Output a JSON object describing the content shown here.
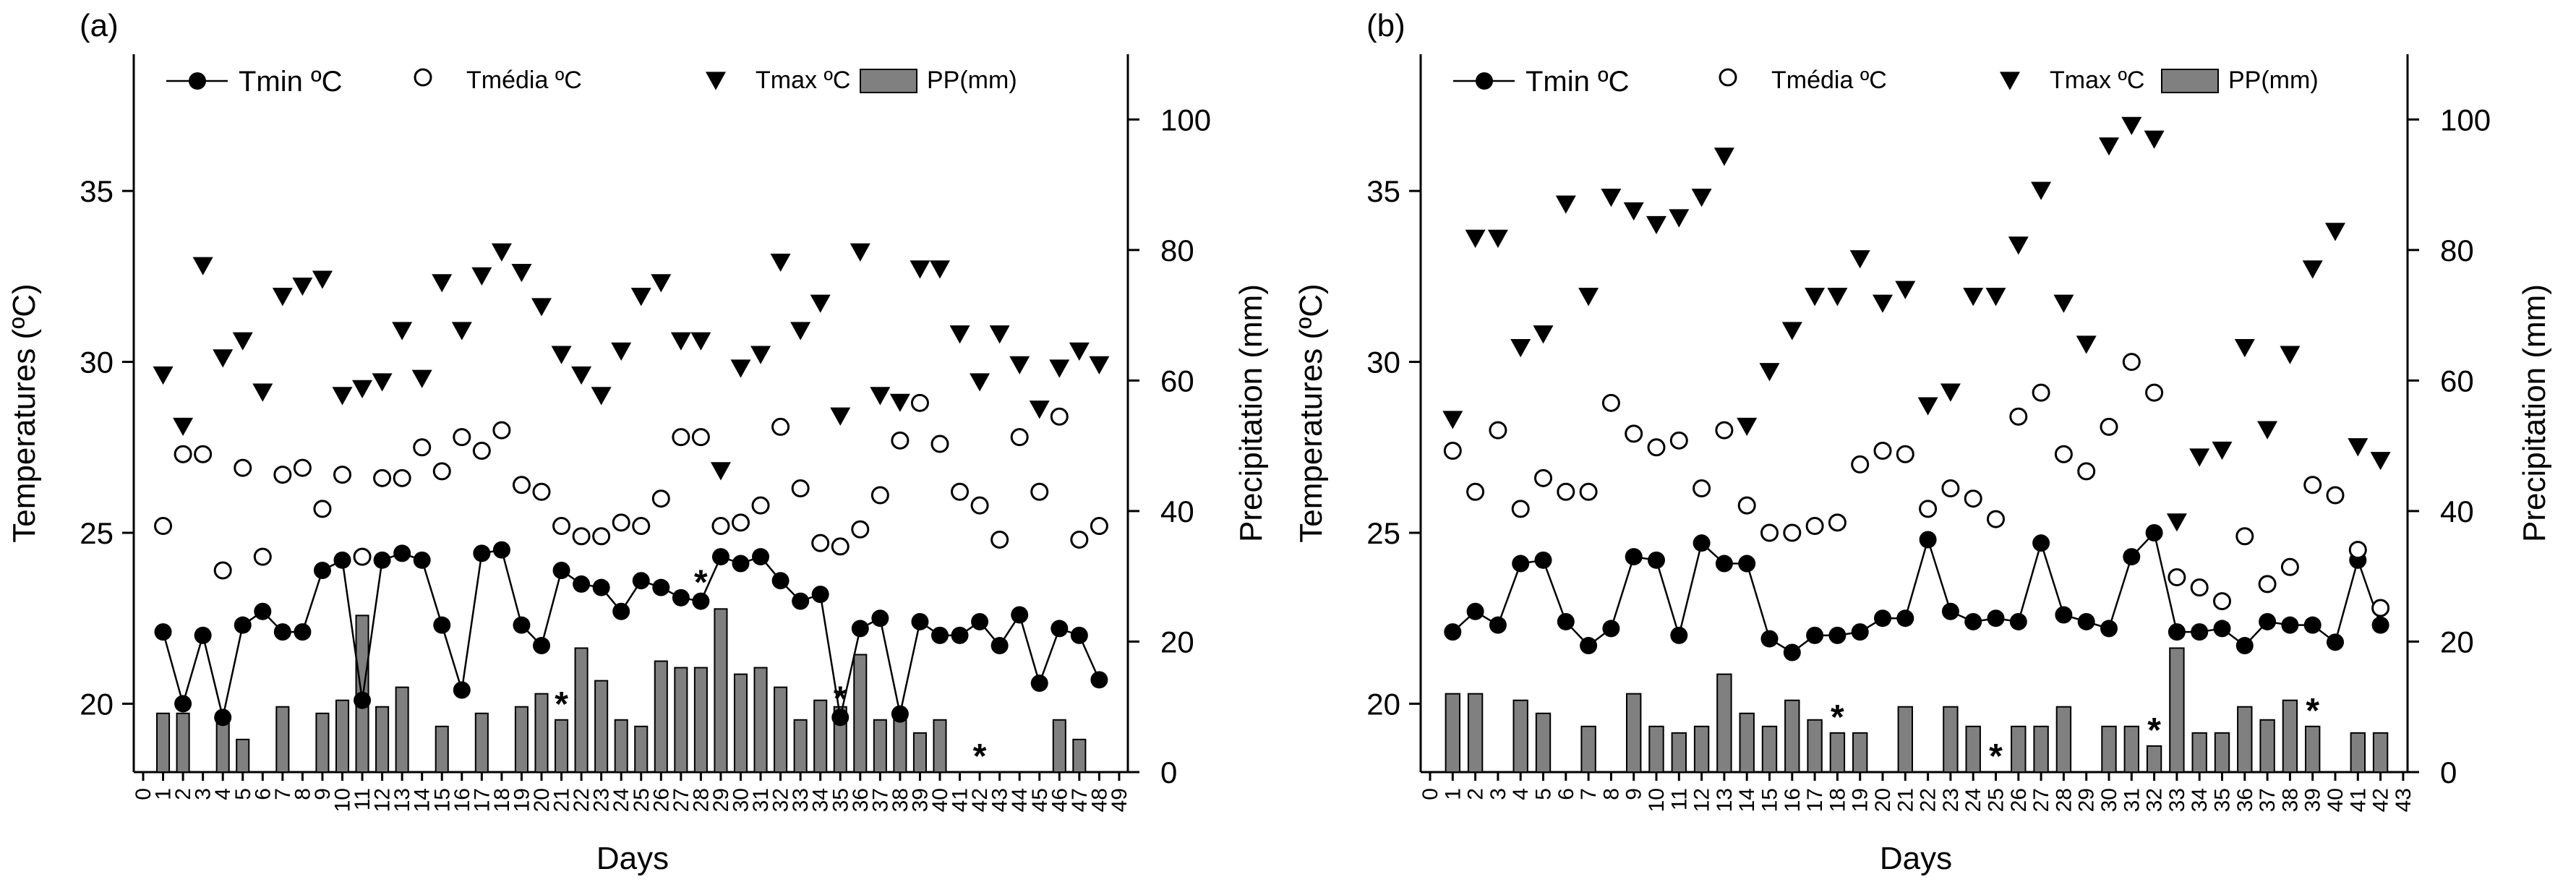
{
  "chart_data": [
    {
      "type": "bar",
      "panel_label": "(a)",
      "xlabel": "Days",
      "ylabel": "Temperatures (ºC)",
      "y2label": "Precipitation (mm)",
      "ylim": [
        18,
        39
      ],
      "y2lim": [
        0,
        110
      ],
      "yticks": [
        20,
        25,
        30,
        35
      ],
      "y2ticks": [
        0,
        20,
        40,
        60,
        80,
        100
      ],
      "x": [
        0,
        1,
        2,
        3,
        4,
        5,
        6,
        7,
        8,
        9,
        10,
        11,
        12,
        13,
        14,
        15,
        16,
        17,
        18,
        19,
        20,
        21,
        22,
        23,
        24,
        25,
        26,
        27,
        28,
        29,
        30,
        31,
        32,
        33,
        34,
        35,
        36,
        37,
        38,
        39,
        40,
        41,
        42,
        43,
        44,
        45,
        46,
        47,
        48,
        49
      ],
      "legend": {
        "tmin": "Tmin ºC",
        "tmedia": "Tmédia ºC",
        "tmax": "Tmax ºC",
        "pp": "PP(mm)"
      },
      "series": [
        {
          "name": "Tmin ºC",
          "values": [
            null,
            22.1,
            20.0,
            22.0,
            19.6,
            22.3,
            22.7,
            22.1,
            22.1,
            23.9,
            24.2,
            20.1,
            24.2,
            24.4,
            24.2,
            22.3,
            20.4,
            24.4,
            24.5,
            22.3,
            21.7,
            23.9,
            23.5,
            23.4,
            22.7,
            23.6,
            23.4,
            23.1,
            23.0,
            24.3,
            24.1,
            24.3,
            23.6,
            23.0,
            23.2,
            19.6,
            22.2,
            22.5,
            19.7,
            22.4,
            22.0,
            22.0,
            22.4,
            21.7,
            22.6,
            20.6,
            22.2,
            22.0,
            20.7,
            null
          ]
        },
        {
          "name": "Tmédia ºC",
          "values": [
            null,
            25.2,
            27.3,
            27.3,
            23.9,
            26.9,
            24.3,
            26.7,
            26.9,
            25.7,
            26.7,
            24.3,
            26.6,
            26.6,
            27.5,
            26.8,
            27.8,
            27.4,
            28.0,
            26.4,
            26.2,
            25.2,
            24.9,
            24.9,
            25.3,
            25.2,
            26.0,
            27.8,
            27.8,
            25.2,
            25.3,
            25.8,
            28.1,
            26.3,
            24.7,
            24.6,
            25.1,
            26.1,
            27.7,
            28.8,
            27.6,
            26.2,
            25.8,
            24.8,
            27.8,
            26.2,
            28.4,
            24.8,
            25.2,
            null
          ]
        },
        {
          "name": "Tmax ºC",
          "values": [
            null,
            29.6,
            28.1,
            32.8,
            30.1,
            30.6,
            29.1,
            31.9,
            32.2,
            32.4,
            29.0,
            29.2,
            29.4,
            30.9,
            29.5,
            32.3,
            30.9,
            32.5,
            33.2,
            32.6,
            31.6,
            30.2,
            29.6,
            29.0,
            30.3,
            31.9,
            32.3,
            30.6,
            30.6,
            26.8,
            29.8,
            30.2,
            32.9,
            30.9,
            31.7,
            28.4,
            33.2,
            29.0,
            28.8,
            32.7,
            32.7,
            30.8,
            29.4,
            30.8,
            29.9,
            28.6,
            29.8,
            30.3,
            29.9,
            null
          ]
        },
        {
          "name": "PP(mm)",
          "values": [
            null,
            9,
            9,
            null,
            9,
            5,
            null,
            10,
            null,
            9,
            11,
            24,
            10,
            13,
            null,
            7,
            null,
            9,
            null,
            10,
            12,
            8,
            19,
            14,
            8,
            7,
            17,
            16,
            16,
            25,
            15,
            16,
            13,
            8,
            11,
            10,
            18,
            8,
            9,
            6,
            8,
            null,
            null,
            null,
            null,
            null,
            8,
            5,
            null,
            null
          ]
        }
      ],
      "asterisks": [
        {
          "day": 21,
          "at": "pp"
        },
        {
          "day": 28,
          "at": "tmin"
        },
        {
          "day": 35,
          "at": "tmin"
        },
        {
          "day": 42,
          "at": "pp"
        }
      ]
    },
    {
      "type": "bar",
      "panel_label": "(b)",
      "xlabel": "Days",
      "ylabel": "Temperatures (ºC)",
      "y2label": "Precipitation (mm)",
      "ylim": [
        18,
        39
      ],
      "y2lim": [
        0,
        110
      ],
      "yticks": [
        20,
        25,
        30,
        35
      ],
      "y2ticks": [
        0,
        20,
        40,
        60,
        80,
        100
      ],
      "x": [
        0,
        1,
        2,
        3,
        4,
        5,
        6,
        7,
        8,
        9,
        10,
        11,
        12,
        13,
        14,
        15,
        16,
        17,
        18,
        19,
        20,
        21,
        22,
        23,
        24,
        25,
        26,
        27,
        28,
        29,
        30,
        31,
        32,
        33,
        34,
        35,
        36,
        37,
        38,
        39,
        40,
        41,
        42,
        43
      ],
      "legend": {
        "tmin": "Tmin ºC",
        "tmedia": "Tmédia ºC",
        "tmax": "Tmax ºC",
        "pp": "PP(mm)"
      },
      "series": [
        {
          "name": "Tmin ºC",
          "values": [
            null,
            22.1,
            22.7,
            22.3,
            24.1,
            24.2,
            22.4,
            21.7,
            22.2,
            24.3,
            24.2,
            22.0,
            24.7,
            24.1,
            24.1,
            21.9,
            21.5,
            22.0,
            22.0,
            22.1,
            22.5,
            22.5,
            24.8,
            22.7,
            22.4,
            22.5,
            22.4,
            24.7,
            22.6,
            22.4,
            22.2,
            24.3,
            25.0,
            22.1,
            22.1,
            22.2,
            21.7,
            22.4,
            22.3,
            22.3,
            21.8,
            24.2,
            22.3,
            null
          ]
        },
        {
          "name": "Tmédia ºC",
          "values": [
            null,
            27.4,
            26.2,
            28.0,
            25.7,
            26.6,
            26.2,
            26.2,
            28.8,
            27.9,
            27.5,
            27.7,
            26.3,
            28.0,
            25.8,
            25.0,
            25.0,
            25.2,
            25.3,
            27.0,
            27.4,
            27.3,
            25.7,
            26.3,
            26.0,
            25.4,
            28.4,
            29.1,
            27.3,
            26.8,
            28.1,
            30.0,
            29.1,
            23.7,
            23.4,
            23.0,
            24.9,
            23.5,
            24.0,
            26.4,
            26.1,
            24.5,
            22.8,
            null
          ]
        },
        {
          "name": "Tmax ºC",
          "values": [
            null,
            28.3,
            33.6,
            33.6,
            30.4,
            30.8,
            34.6,
            31.9,
            34.8,
            34.4,
            34.0,
            34.2,
            34.8,
            36.0,
            28.1,
            29.7,
            30.9,
            31.9,
            31.9,
            33.0,
            31.7,
            32.1,
            28.7,
            29.1,
            31.9,
            31.9,
            33.4,
            35.0,
            31.7,
            30.5,
            36.3,
            36.9,
            36.5,
            25.3,
            27.2,
            27.4,
            30.4,
            28.0,
            30.2,
            32.7,
            33.8,
            27.5,
            27.1,
            null
          ]
        },
        {
          "name": "PP(mm)",
          "values": [
            null,
            12,
            12,
            null,
            11,
            9,
            null,
            7,
            null,
            12,
            7,
            6,
            7,
            15,
            9,
            7,
            11,
            8,
            6,
            6,
            null,
            10,
            null,
            10,
            7,
            null,
            7,
            7,
            10,
            null,
            7,
            7,
            4,
            19,
            6,
            6,
            10,
            8,
            11,
            7,
            null,
            6,
            6,
            null
          ]
        }
      ],
      "asterisks": [
        {
          "day": 18,
          "at": "pp"
        },
        {
          "day": 25,
          "at": "pp"
        },
        {
          "day": 32,
          "at": "pp"
        },
        {
          "day": 39,
          "at": "pp"
        }
      ]
    }
  ]
}
